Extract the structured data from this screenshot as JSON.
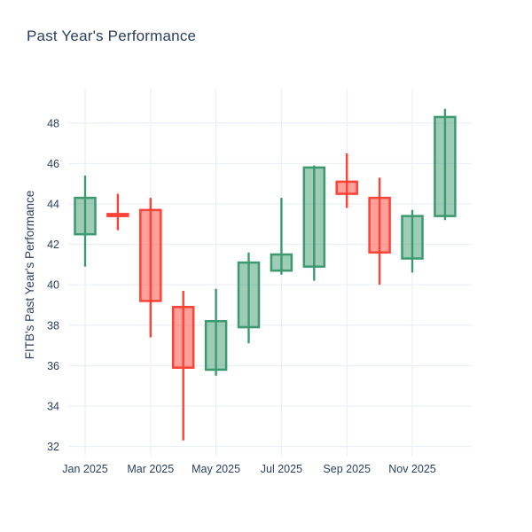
{
  "chart_data": {
    "type": "candlestick",
    "title": "Past Year's Performance",
    "xlabel": "",
    "ylabel": "FITB's Past Year's Performance",
    "symbol": "FITB",
    "categories": [
      "Jan 2025",
      "Feb 2025",
      "Mar 2025",
      "Apr 2025",
      "May 2025",
      "Jun 2025",
      "Jul 2025",
      "Aug 2025",
      "Sep 2025",
      "Oct 2025",
      "Nov 2025",
      "Dec 2025"
    ],
    "series": {
      "open": [
        42.5,
        43.5,
        43.7,
        38.9,
        35.8,
        37.9,
        40.7,
        40.9,
        45.1,
        44.3,
        41.3,
        43.4
      ],
      "high": [
        45.4,
        44.5,
        44.3,
        39.7,
        39.8,
        41.6,
        44.3,
        45.9,
        46.5,
        45.3,
        43.7,
        48.7
      ],
      "low": [
        40.9,
        42.7,
        37.4,
        32.3,
        35.5,
        37.1,
        40.5,
        40.2,
        43.8,
        40.0,
        40.6,
        43.2
      ],
      "close": [
        44.3,
        43.4,
        39.2,
        35.9,
        38.2,
        41.1,
        41.5,
        45.8,
        44.5,
        41.6,
        43.4,
        48.3
      ]
    },
    "x_tick_labels": [
      "Jan 2025",
      "Mar 2025",
      "May 2025",
      "Jul 2025",
      "Sep 2025",
      "Nov 2025"
    ],
    "x_tick_positions": [
      0,
      2,
      4,
      6,
      8,
      10
    ],
    "y_ticks": [
      32,
      34,
      36,
      38,
      40,
      42,
      44,
      46,
      48
    ],
    "ylim": [
      31.5,
      49.7
    ],
    "grid": true,
    "legend": "none",
    "colors": {
      "increasing_line": "#3D9970",
      "increasing_fill": "rgba(61,153,112,0.5)",
      "decreasing_line": "#FF4136",
      "decreasing_fill": "rgba(255,65,54,0.5)",
      "grid": "#EAEFF8",
      "text": "#2a3f5f",
      "background": "#FFFFFF"
    }
  }
}
